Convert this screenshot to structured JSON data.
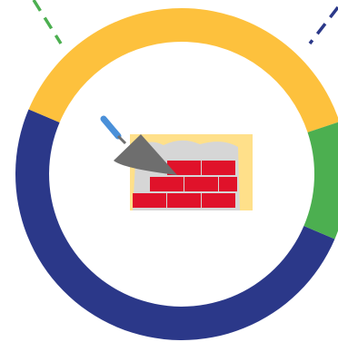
{
  "chart_data": {
    "type": "pie",
    "donut": true,
    "title": "",
    "legend": "none",
    "start_angle_deg": 23,
    "slices": [
      {
        "name": "",
        "value": 50.0,
        "color": "#2B3889"
      },
      {
        "name": "",
        "value": 38.5,
        "color": "#FDC13D"
      },
      {
        "name": "",
        "value": 11.5,
        "color": "#4CAF50"
      }
    ],
    "leader_lines": [
      {
        "slice": 2,
        "style": "dashed",
        "color": "#4CAF50",
        "direction": "up-left"
      },
      {
        "slice": 0,
        "style": "dashed",
        "color": "#2B3889",
        "direction": "up-right"
      }
    ]
  },
  "center_icon": {
    "name": "brick-wall-trowel-icon",
    "brick_color": "#E0122A",
    "mortar_color": "#D6D6D6",
    "background_color": "#FFE08A",
    "trowel_blade_color": "#6E6E6E",
    "trowel_handle_color": "#4A90D9"
  }
}
